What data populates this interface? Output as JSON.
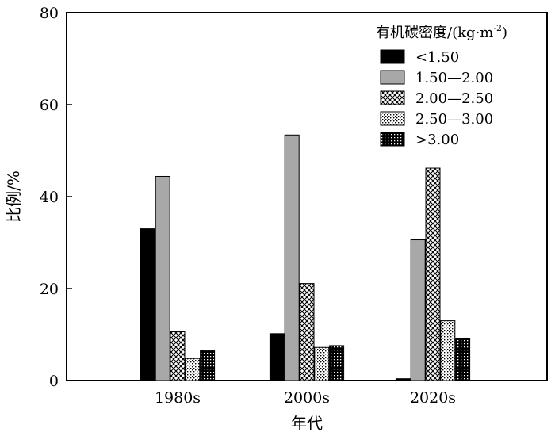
{
  "chart_data": {
    "type": "bar",
    "xlabel": "年代",
    "ylabel": "比例/%",
    "ylim": [
      0,
      80
    ],
    "yticks": [
      0,
      20,
      40,
      60,
      80
    ],
    "categories": [
      "1980s",
      "2000s",
      "2020s"
    ],
    "legend": {
      "title": "有机碳密度/(kg·m",
      "title_sup": "-2",
      "title_end": ")",
      "placement": "top-right"
    },
    "series": [
      {
        "name": "<1.50",
        "pattern": "solid-black",
        "values": [
          33.0,
          10.2,
          0.4
        ]
      },
      {
        "name": "1.50—2.00",
        "pattern": "solid-gray",
        "values": [
          44.4,
          53.4,
          30.6
        ]
      },
      {
        "name": "2.00—2.50",
        "pattern": "crosshatch",
        "values": [
          10.6,
          21.1,
          46.2
        ]
      },
      {
        "name": "2.50—3.00",
        "pattern": "light-dots",
        "values": [
          4.8,
          7.2,
          13.0
        ]
      },
      {
        "name": ">3.00",
        "pattern": "dark-dots",
        "values": [
          6.6,
          7.6,
          9.1
        ]
      }
    ],
    "colors": {
      "solid-black": "#000000",
      "solid-gray": "#a8a8a8"
    }
  }
}
